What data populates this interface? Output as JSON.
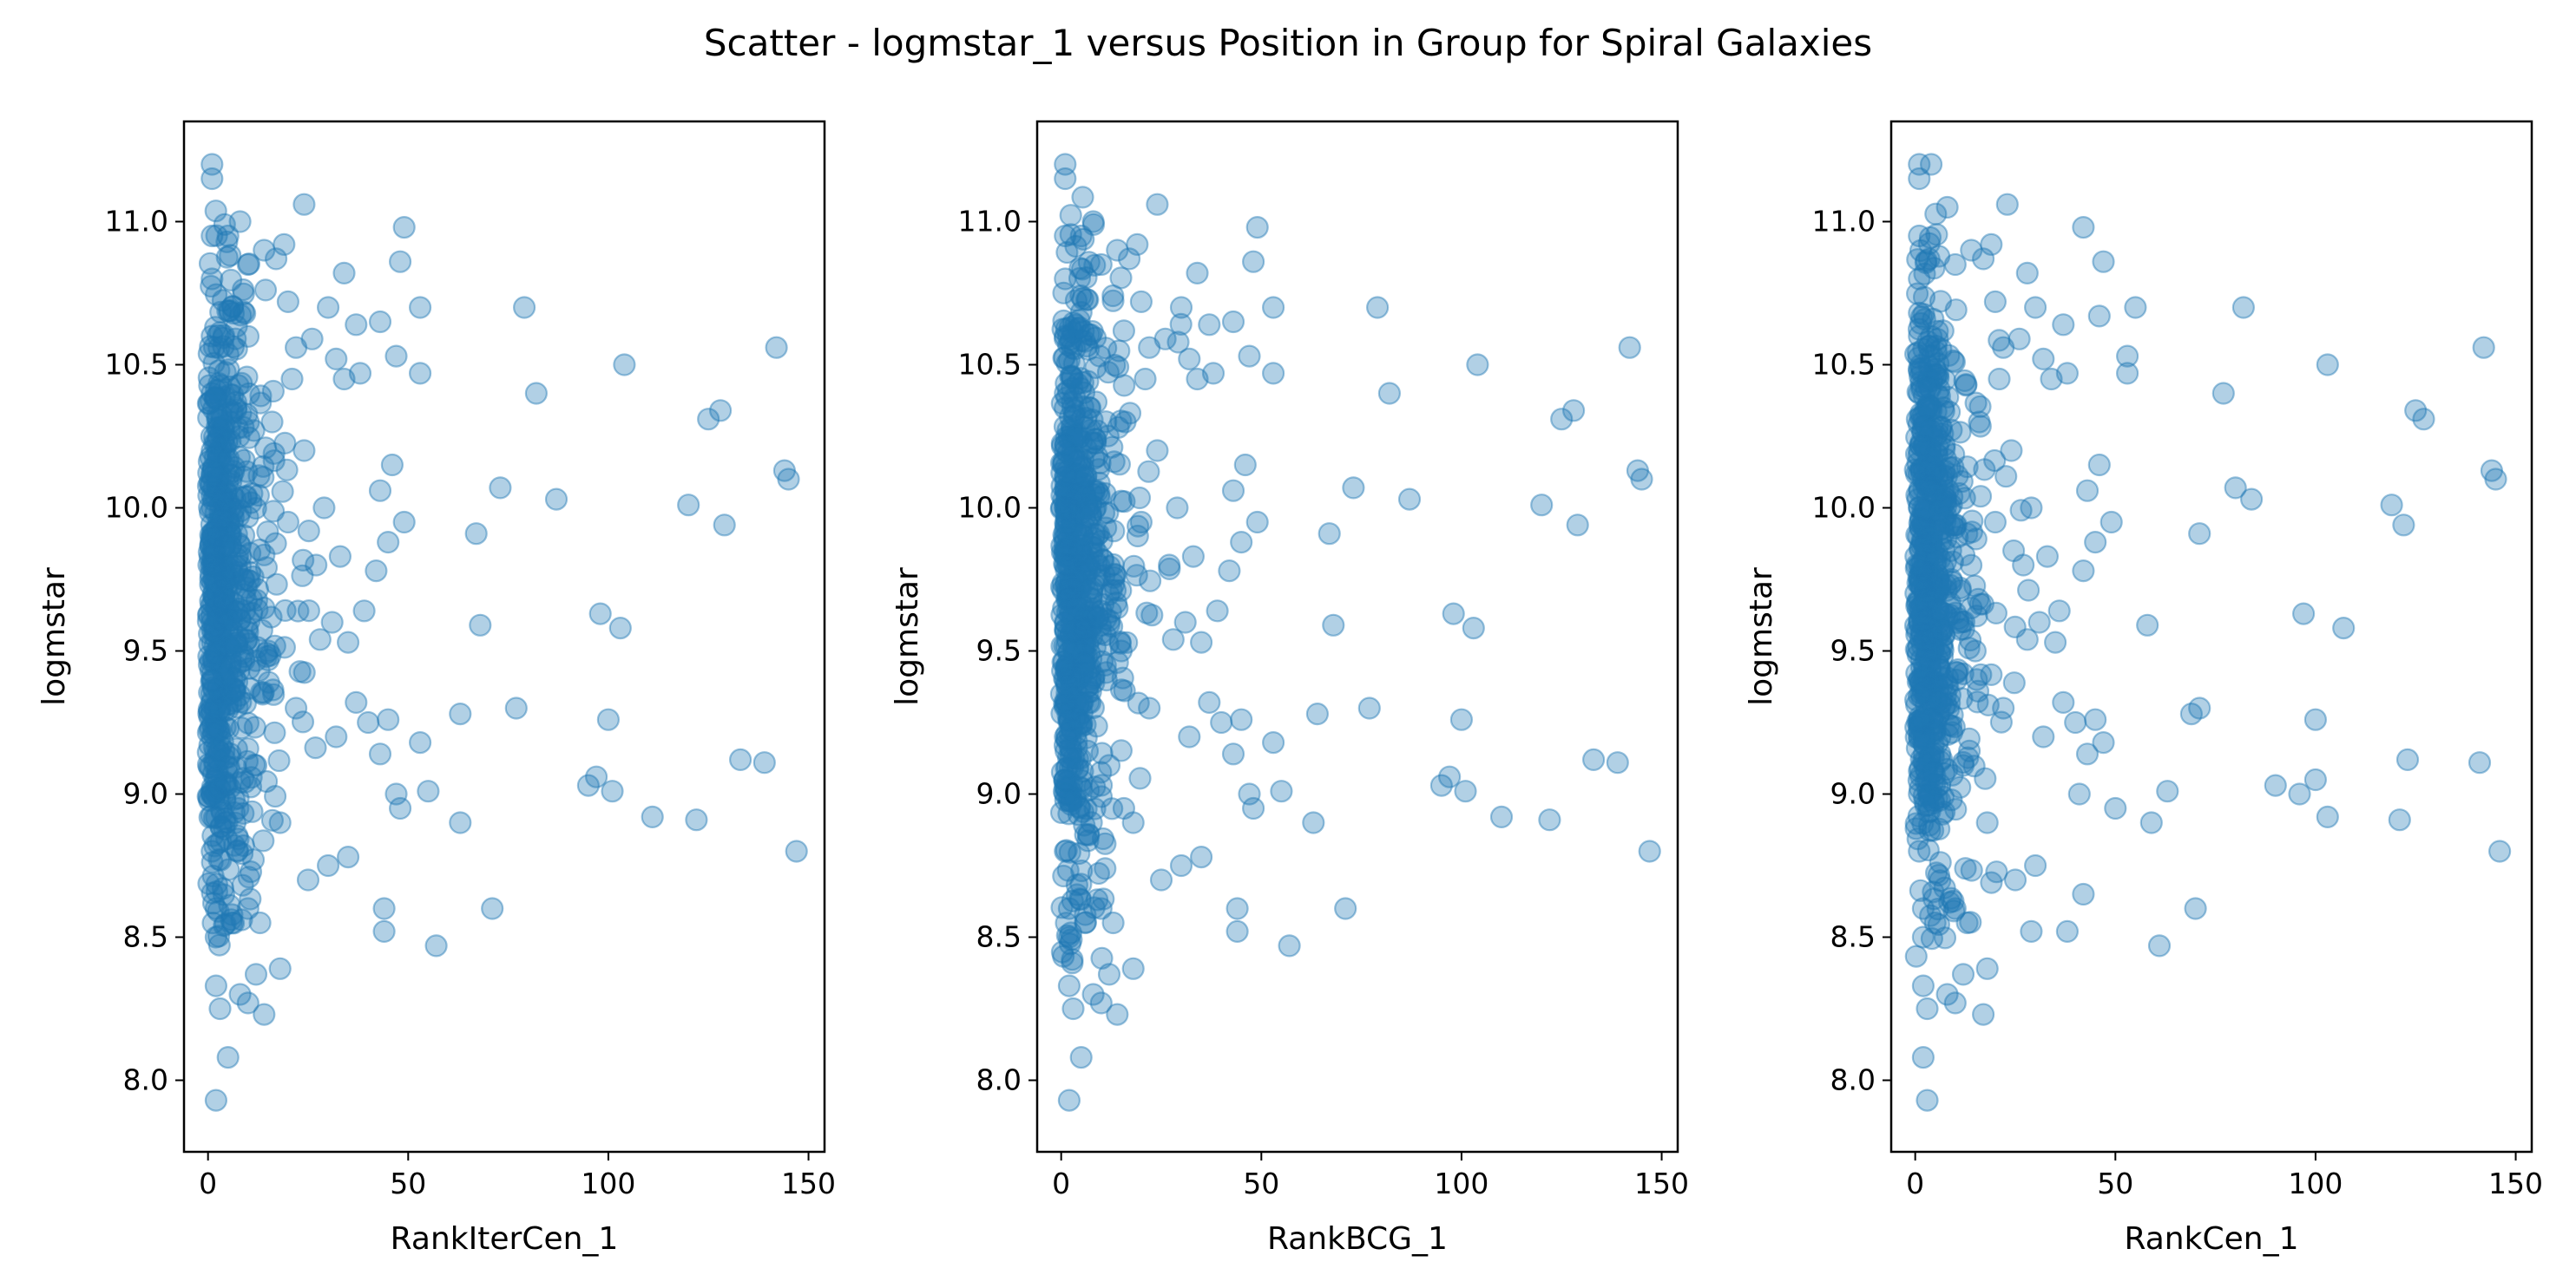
{
  "figure": {
    "title": "Scatter - logmstar_1 versus Position in Group for Spiral Galaxies"
  },
  "style": {
    "marker_color": "#1f77b4",
    "marker_alpha": 0.35
  },
  "chart_data": [
    {
      "type": "scatter",
      "xlabel": "RankIterCen_1",
      "ylabel": "logmstar",
      "xlim": [
        -6,
        154
      ],
      "ylim": [
        7.75,
        11.35
      ],
      "xticks": [
        0,
        50,
        100,
        150
      ],
      "xtick_labels": [
        "0",
        "50",
        "100",
        "150"
      ],
      "yticks": [
        8.0,
        8.5,
        9.0,
        9.5,
        10.0,
        10.5,
        11.0
      ],
      "ytick_labels": [
        "8.0",
        "8.5",
        "9.0",
        "9.5",
        "10.0",
        "10.5",
        "11.0"
      ],
      "grid": false,
      "points": [
        [
          1,
          11.2
        ],
        [
          1,
          11.15
        ],
        [
          1,
          10.95
        ],
        [
          1,
          10.8
        ],
        [
          1,
          10.6
        ],
        [
          1,
          10.4
        ],
        [
          1,
          10.2
        ],
        [
          1,
          10.0
        ],
        [
          1,
          9.8
        ],
        [
          1,
          9.6
        ],
        [
          1,
          9.4
        ],
        [
          1,
          9.2
        ],
        [
          1,
          9.0
        ],
        [
          1,
          8.8
        ],
        [
          2,
          8.6
        ],
        [
          2,
          8.5
        ],
        [
          2,
          8.33
        ],
        [
          3,
          8.25
        ],
        [
          2,
          7.93
        ],
        [
          5,
          8.08
        ],
        [
          6,
          8.55
        ],
        [
          8,
          8.3
        ],
        [
          10,
          8.27
        ],
        [
          14,
          8.23
        ],
        [
          12,
          8.37
        ],
        [
          18,
          8.39
        ],
        [
          5,
          10.95
        ],
        [
          8,
          11.0
        ],
        [
          10,
          10.85
        ],
        [
          14,
          10.9
        ],
        [
          17,
          10.87
        ],
        [
          19,
          10.92
        ],
        [
          24,
          11.06
        ],
        [
          20,
          10.72
        ],
        [
          22,
          10.56
        ],
        [
          26,
          10.59
        ],
        [
          29,
          10.0
        ],
        [
          30,
          10.7
        ],
        [
          34,
          10.82
        ],
        [
          37,
          10.64
        ],
        [
          34,
          10.45
        ],
        [
          38,
          10.47
        ],
        [
          32,
          10.52
        ],
        [
          43,
          10.65
        ],
        [
          48,
          10.86
        ],
        [
          49,
          10.98
        ],
        [
          47,
          10.53
        ],
        [
          53,
          10.7
        ],
        [
          53,
          10.47
        ],
        [
          43,
          10.06
        ],
        [
          46,
          10.15
        ],
        [
          45,
          9.88
        ],
        [
          49,
          9.95
        ],
        [
          42,
          9.78
        ],
        [
          33,
          9.83
        ],
        [
          39,
          9.64
        ],
        [
          35,
          9.53
        ],
        [
          31,
          9.6
        ],
        [
          28,
          9.54
        ],
        [
          37,
          9.32
        ],
        [
          40,
          9.25
        ],
        [
          43,
          9.14
        ],
        [
          45,
          9.26
        ],
        [
          47,
          9.0
        ],
        [
          48,
          8.95
        ],
        [
          44,
          8.6
        ],
        [
          44,
          8.52
        ],
        [
          57,
          8.47
        ],
        [
          53,
          9.18
        ],
        [
          55,
          9.01
        ],
        [
          63,
          9.28
        ],
        [
          63,
          8.9
        ],
        [
          67,
          9.91
        ],
        [
          68,
          9.59
        ],
        [
          71,
          8.6
        ],
        [
          73,
          10.07
        ],
        [
          77,
          9.3
        ],
        [
          79,
          10.7
        ],
        [
          82,
          10.4
        ],
        [
          87,
          10.03
        ],
        [
          95,
          9.03
        ],
        [
          97,
          9.06
        ],
        [
          98,
          9.63
        ],
        [
          100,
          9.26
        ],
        [
          101,
          9.01
        ],
        [
          103,
          9.58
        ],
        [
          104,
          10.5
        ],
        [
          111,
          8.92
        ],
        [
          120,
          10.01
        ],
        [
          122,
          8.91
        ],
        [
          125,
          10.31
        ],
        [
          128,
          10.34
        ],
        [
          129,
          9.94
        ],
        [
          133,
          9.12
        ],
        [
          139,
          9.11
        ],
        [
          142,
          10.56
        ],
        [
          144,
          10.13
        ],
        [
          145,
          10.1
        ],
        [
          147,
          8.8
        ],
        [
          12,
          9.1
        ],
        [
          15,
          9.5
        ],
        [
          18,
          8.9
        ],
        [
          22,
          9.3
        ],
        [
          25,
          8.7
        ],
        [
          27,
          9.8
        ],
        [
          30,
          8.75
        ],
        [
          32,
          9.2
        ],
        [
          35,
          8.78
        ],
        [
          20,
          9.95
        ],
        [
          24,
          10.2
        ],
        [
          16,
          10.3
        ],
        [
          10,
          8.6
        ],
        [
          13,
          8.55
        ],
        [
          9,
          9.75
        ],
        [
          7,
          10.35
        ],
        [
          11,
          10.05
        ],
        [
          14,
          9.65
        ],
        [
          21,
          10.45
        ]
      ]
    },
    {
      "type": "scatter",
      "xlabel": "RankBCG_1",
      "ylabel": "logmstar",
      "xlim": [
        -6,
        154
      ],
      "ylim": [
        7.75,
        11.35
      ],
      "xticks": [
        0,
        50,
        100,
        150
      ],
      "xtick_labels": [
        "0",
        "50",
        "100",
        "150"
      ],
      "yticks": [
        8.0,
        8.5,
        9.0,
        9.5,
        10.0,
        10.5,
        11.0
      ],
      "ytick_labels": [
        "8.0",
        "8.5",
        "9.0",
        "9.5",
        "10.0",
        "10.5",
        "11.0"
      ],
      "grid": false,
      "points": [
        [
          1,
          11.2
        ],
        [
          1,
          11.15
        ],
        [
          1,
          10.95
        ],
        [
          1,
          10.8
        ],
        [
          1,
          10.6
        ],
        [
          1,
          10.4
        ],
        [
          1,
          10.2
        ],
        [
          1,
          10.0
        ],
        [
          1,
          9.8
        ],
        [
          1,
          9.6
        ],
        [
          1,
          9.4
        ],
        [
          1,
          9.2
        ],
        [
          1,
          9.0
        ],
        [
          1,
          8.8
        ],
        [
          2,
          8.6
        ],
        [
          2,
          8.5
        ],
        [
          2,
          8.33
        ],
        [
          3,
          8.25
        ],
        [
          2,
          7.93
        ],
        [
          5,
          8.08
        ],
        [
          6,
          8.55
        ],
        [
          8,
          8.3
        ],
        [
          10,
          8.27
        ],
        [
          14,
          8.23
        ],
        [
          12,
          8.37
        ],
        [
          18,
          8.39
        ],
        [
          5,
          10.95
        ],
        [
          8,
          11.0
        ],
        [
          10,
          10.85
        ],
        [
          14,
          10.9
        ],
        [
          17,
          10.87
        ],
        [
          19,
          10.92
        ],
        [
          24,
          11.06
        ],
        [
          20,
          10.72
        ],
        [
          22,
          10.56
        ],
        [
          26,
          10.59
        ],
        [
          29,
          10.0
        ],
        [
          30,
          10.7
        ],
        [
          34,
          10.82
        ],
        [
          37,
          10.64
        ],
        [
          34,
          10.45
        ],
        [
          38,
          10.47
        ],
        [
          32,
          10.52
        ],
        [
          43,
          10.65
        ],
        [
          48,
          10.86
        ],
        [
          49,
          10.98
        ],
        [
          47,
          10.53
        ],
        [
          53,
          10.7
        ],
        [
          53,
          10.47
        ],
        [
          43,
          10.06
        ],
        [
          46,
          10.15
        ],
        [
          45,
          9.88
        ],
        [
          49,
          9.95
        ],
        [
          42,
          9.78
        ],
        [
          33,
          9.83
        ],
        [
          39,
          9.64
        ],
        [
          35,
          9.53
        ],
        [
          31,
          9.6
        ],
        [
          28,
          9.54
        ],
        [
          37,
          9.32
        ],
        [
          40,
          9.25
        ],
        [
          43,
          9.14
        ],
        [
          45,
          9.26
        ],
        [
          47,
          9.0
        ],
        [
          48,
          8.95
        ],
        [
          44,
          8.6
        ],
        [
          44,
          8.52
        ],
        [
          57,
          8.47
        ],
        [
          53,
          9.18
        ],
        [
          55,
          9.01
        ],
        [
          64,
          9.28
        ],
        [
          63,
          8.9
        ],
        [
          67,
          9.91
        ],
        [
          68,
          9.59
        ],
        [
          71,
          8.6
        ],
        [
          73,
          10.07
        ],
        [
          77,
          9.3
        ],
        [
          79,
          10.7
        ],
        [
          82,
          10.4
        ],
        [
          87,
          10.03
        ],
        [
          95,
          9.03
        ],
        [
          97,
          9.06
        ],
        [
          98,
          9.63
        ],
        [
          100,
          9.26
        ],
        [
          101,
          9.01
        ],
        [
          103,
          9.58
        ],
        [
          104,
          10.5
        ],
        [
          110,
          8.92
        ],
        [
          120,
          10.01
        ],
        [
          122,
          8.91
        ],
        [
          125,
          10.31
        ],
        [
          128,
          10.34
        ],
        [
          129,
          9.94
        ],
        [
          133,
          9.12
        ],
        [
          139,
          9.11
        ],
        [
          142,
          10.56
        ],
        [
          144,
          10.13
        ],
        [
          145,
          10.1
        ],
        [
          147,
          8.8
        ],
        [
          12,
          9.1
        ],
        [
          15,
          9.5
        ],
        [
          18,
          8.9
        ],
        [
          22,
          9.3
        ],
        [
          25,
          8.7
        ],
        [
          27,
          9.8
        ],
        [
          30,
          8.75
        ],
        [
          32,
          9.2
        ],
        [
          35,
          8.78
        ],
        [
          20,
          9.95
        ],
        [
          24,
          10.2
        ],
        [
          16,
          10.3
        ],
        [
          10,
          8.6
        ],
        [
          13,
          8.55
        ],
        [
          9,
          9.75
        ],
        [
          7,
          10.35
        ],
        [
          11,
          10.05
        ],
        [
          14,
          9.65
        ],
        [
          21,
          10.45
        ]
      ]
    },
    {
      "type": "scatter",
      "xlabel": "RankCen_1",
      "ylabel": "logmstar",
      "xlim": [
        -6,
        154
      ],
      "ylim": [
        7.75,
        11.35
      ],
      "xticks": [
        0,
        50,
        100,
        150
      ],
      "xtick_labels": [
        "0",
        "50",
        "100",
        "150"
      ],
      "yticks": [
        8.0,
        8.5,
        9.0,
        9.5,
        10.0,
        10.5,
        11.0
      ],
      "ytick_labels": [
        "8.0",
        "8.5",
        "9.0",
        "9.5",
        "10.0",
        "10.5",
        "11.0"
      ],
      "grid": false,
      "points": [
        [
          1,
          11.2
        ],
        [
          1,
          11.15
        ],
        [
          1,
          10.95
        ],
        [
          1,
          10.8
        ],
        [
          1,
          10.6
        ],
        [
          1,
          10.4
        ],
        [
          1,
          10.2
        ],
        [
          1,
          10.0
        ],
        [
          1,
          9.8
        ],
        [
          1,
          9.6
        ],
        [
          1,
          9.4
        ],
        [
          1,
          9.2
        ],
        [
          1,
          9.0
        ],
        [
          1,
          8.8
        ],
        [
          2,
          8.6
        ],
        [
          2,
          8.5
        ],
        [
          2,
          8.33
        ],
        [
          3,
          8.25
        ],
        [
          2,
          8.08
        ],
        [
          3,
          7.93
        ],
        [
          5,
          8.55
        ],
        [
          8,
          8.3
        ],
        [
          10,
          8.27
        ],
        [
          17,
          8.23
        ],
        [
          12,
          8.37
        ],
        [
          18,
          8.39
        ],
        [
          4,
          11.2
        ],
        [
          8,
          11.05
        ],
        [
          10,
          10.85
        ],
        [
          14,
          10.9
        ],
        [
          17,
          10.87
        ],
        [
          19,
          10.92
        ],
        [
          23,
          11.06
        ],
        [
          20,
          10.72
        ],
        [
          22,
          10.56
        ],
        [
          26,
          10.59
        ],
        [
          29,
          10.0
        ],
        [
          30,
          10.7
        ],
        [
          28,
          10.82
        ],
        [
          37,
          10.64
        ],
        [
          34,
          10.45
        ],
        [
          38,
          10.47
        ],
        [
          32,
          10.52
        ],
        [
          46,
          10.67
        ],
        [
          47,
          10.86
        ],
        [
          42,
          10.98
        ],
        [
          53,
          10.53
        ],
        [
          55,
          10.7
        ],
        [
          53,
          10.47
        ],
        [
          43,
          10.06
        ],
        [
          46,
          10.15
        ],
        [
          45,
          9.88
        ],
        [
          49,
          9.95
        ],
        [
          42,
          9.78
        ],
        [
          33,
          9.83
        ],
        [
          36,
          9.64
        ],
        [
          35,
          9.53
        ],
        [
          31,
          9.6
        ],
        [
          28,
          9.54
        ],
        [
          37,
          9.32
        ],
        [
          40,
          9.25
        ],
        [
          43,
          9.14
        ],
        [
          45,
          9.26
        ],
        [
          41,
          9.0
        ],
        [
          50,
          8.95
        ],
        [
          42,
          8.65
        ],
        [
          38,
          8.52
        ],
        [
          61,
          8.47
        ],
        [
          47,
          9.18
        ],
        [
          63,
          9.01
        ],
        [
          69,
          9.28
        ],
        [
          59,
          8.9
        ],
        [
          71,
          9.91
        ],
        [
          58,
          9.59
        ],
        [
          70,
          8.6
        ],
        [
          71,
          9.3
        ],
        [
          80,
          10.07
        ],
        [
          77,
          10.4
        ],
        [
          82,
          10.7
        ],
        [
          84,
          10.03
        ],
        [
          90,
          9.03
        ],
        [
          96,
          9.0
        ],
        [
          97,
          9.63
        ],
        [
          100,
          9.26
        ],
        [
          100,
          9.05
        ],
        [
          107,
          9.58
        ],
        [
          103,
          10.5
        ],
        [
          103,
          8.92
        ],
        [
          119,
          10.01
        ],
        [
          121,
          8.91
        ],
        [
          122,
          9.94
        ],
        [
          125,
          10.34
        ],
        [
          127,
          10.31
        ],
        [
          123,
          9.12
        ],
        [
          141,
          9.11
        ],
        [
          142,
          10.56
        ],
        [
          144,
          10.13
        ],
        [
          145,
          10.1
        ],
        [
          146,
          8.8
        ],
        [
          12,
          9.1
        ],
        [
          15,
          9.5
        ],
        [
          18,
          8.9
        ],
        [
          22,
          9.3
        ],
        [
          25,
          8.7
        ],
        [
          27,
          9.8
        ],
        [
          30,
          8.75
        ],
        [
          32,
          9.2
        ],
        [
          29,
          8.52
        ],
        [
          20,
          9.95
        ],
        [
          24,
          10.2
        ],
        [
          16,
          10.3
        ],
        [
          10,
          8.6
        ],
        [
          13,
          8.55
        ],
        [
          9,
          9.75
        ],
        [
          7,
          10.35
        ],
        [
          11,
          10.05
        ],
        [
          14,
          9.65
        ],
        [
          21,
          10.45
        ]
      ]
    }
  ]
}
